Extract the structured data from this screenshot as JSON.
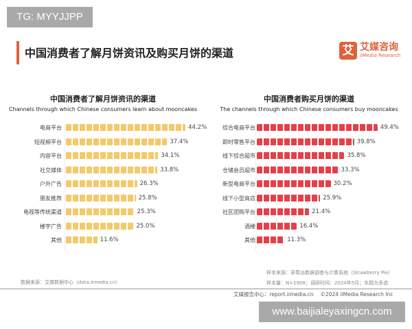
{
  "watermark_top": "TG: MYYJJPP",
  "watermark_bottom": "www.baijialeyaxingcn.com",
  "main_title": "中国消费者了解月饼资讯及购买月饼的渠道",
  "logo": {
    "mark": "艾",
    "cn": "艾媒咨询",
    "en": "iiMedia Research"
  },
  "colors": {
    "accent": "#e0613a",
    "cake": "#f3c96a",
    "bag": "#e5404a"
  },
  "chart_data": [
    {
      "type": "bar",
      "orientation": "horizontal",
      "icon": "mooncake-icon",
      "title": "中国消费者了解月饼资讯的渠道",
      "subtitle": "Channels through which Chinese consumers learn about mooncakes",
      "categories": [
        "电商平台",
        "短视频平台",
        "内容平台",
        "社交媒体",
        "户外广告",
        "朋友推荐",
        "电视等传统渠道",
        "楼宇广告",
        "其他"
      ],
      "values": [
        44.2,
        37.4,
        34.1,
        33.8,
        26.3,
        25.8,
        25.3,
        25.0,
        11.6
      ],
      "labels": [
        "44.2%",
        "37.4%",
        "34.1%",
        "33.8%",
        "26.3%",
        "25.8%",
        "25.3%",
        "25.0%",
        "11.6%"
      ],
      "unit": "%"
    },
    {
      "type": "bar",
      "orientation": "horizontal",
      "icon": "shopping-bag-icon",
      "title": "中国消费者购买月饼的渠道",
      "subtitle": "The channels through which Chinese consumers buy mooncakes",
      "categories": [
        "综合电商平台",
        "即时零售平台",
        "线下综合超市",
        "仓储会员超市",
        "新型电商平台",
        "线下小型商店",
        "社区团购平台",
        "酒楼",
        "其他"
      ],
      "values": [
        49.4,
        39.8,
        35.8,
        33.3,
        30.2,
        25.9,
        21.4,
        16.4,
        11.3
      ],
      "labels": [
        "49.4%",
        "39.8%",
        "35.8%",
        "33.3%",
        "30.2%",
        "25.9%",
        "21.4%",
        "16.4%",
        "11.3%"
      ],
      "unit": "%"
    }
  ],
  "source_left": "数据来源：艾媒数据中心（data.iimedia.cn）",
  "sample_source": "样本来源：草莓派数据调查与计算系统（Strawberry Pie）",
  "sample_info": "样本量：N=1908；调研时间：2024年5月；本题为多选",
  "footer": "艾媒报告中心：report.iimedia.cn　 ©2024  iiMedia Research Inc"
}
